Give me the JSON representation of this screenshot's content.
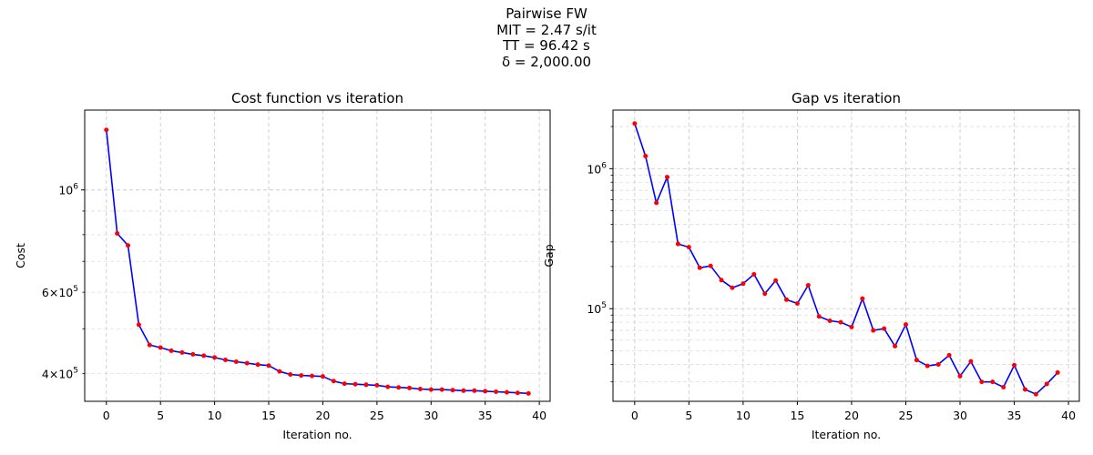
{
  "figure": {
    "suptitle": [
      "Pairwise FW",
      "MIT = 2.47 s/it",
      "TT = 96.42 s",
      "δ = 2,000.00"
    ]
  },
  "chart_data": [
    {
      "type": "line",
      "title": "Cost function vs iteration",
      "xlabel": "Iteration no.",
      "ylabel": "Cost",
      "yscale": "log",
      "xlim": [
        -2,
        41
      ],
      "ylim": [
        348000,
        1490000
      ],
      "xticks": [
        0,
        5,
        10,
        15,
        20,
        25,
        30,
        35,
        40
      ],
      "yticks_major": [
        {
          "value": 1000000,
          "label": "10^6"
        }
      ],
      "yticks_labeled_minor": [
        {
          "value": 400000,
          "label": "4×10^5"
        },
        {
          "value": 600000,
          "label": "6×10^5"
        }
      ],
      "grid": true,
      "line_color": "#0000ff",
      "marker_color": "#ff0000",
      "x": [
        0,
        1,
        2,
        3,
        4,
        5,
        6,
        7,
        8,
        9,
        10,
        11,
        12,
        13,
        14,
        15,
        16,
        17,
        18,
        19,
        20,
        21,
        22,
        23,
        24,
        25,
        26,
        27,
        28,
        29,
        30,
        31,
        32,
        33,
        34,
        35,
        36,
        37,
        38,
        39
      ],
      "values": [
        1350000,
        805000,
        758000,
        510000,
        461000,
        455000,
        448000,
        444000,
        440000,
        437000,
        433000,
        428000,
        424000,
        421000,
        418000,
        416000,
        404000,
        398000,
        396000,
        395000,
        394000,
        385000,
        380000,
        379000,
        378000,
        377000,
        374000,
        373000,
        372000,
        370000,
        369000,
        369000,
        368000,
        367000,
        367000,
        366000,
        365000,
        364000,
        363000,
        362000
      ]
    },
    {
      "type": "line",
      "title": "Gap vs iteration",
      "xlabel": "Iteration no.",
      "ylabel": "Gap",
      "yscale": "log",
      "xlim": [
        -2,
        41
      ],
      "ylim": [
        21800,
        2620000
      ],
      "xticks": [
        0,
        5,
        10,
        15,
        20,
        25,
        30,
        35,
        40
      ],
      "yticks_major": [
        {
          "value": 100000,
          "label": "10^5"
        },
        {
          "value": 1000000,
          "label": "10^6"
        }
      ],
      "grid": true,
      "line_color": "#0000ff",
      "marker_color": "#ff0000",
      "x": [
        0,
        1,
        2,
        3,
        4,
        5,
        6,
        7,
        8,
        9,
        10,
        11,
        12,
        13,
        14,
        15,
        16,
        17,
        18,
        19,
        20,
        21,
        22,
        23,
        24,
        25,
        26,
        27,
        28,
        29,
        30,
        31,
        32,
        33,
        34,
        35,
        36,
        37,
        38,
        39
      ],
      "values": [
        2100000,
        1230000,
        570000,
        870000,
        290000,
        275000,
        196000,
        202000,
        160000,
        141000,
        151000,
        176000,
        128000,
        159000,
        116000,
        109000,
        147000,
        88000,
        82000,
        80000,
        74000,
        118000,
        70000,
        72000,
        54000,
        77000,
        43000,
        39000,
        40000,
        46500,
        33000,
        42000,
        30000,
        30000,
        27500,
        39500,
        26500,
        24500,
        29000,
        35000
      ]
    }
  ]
}
